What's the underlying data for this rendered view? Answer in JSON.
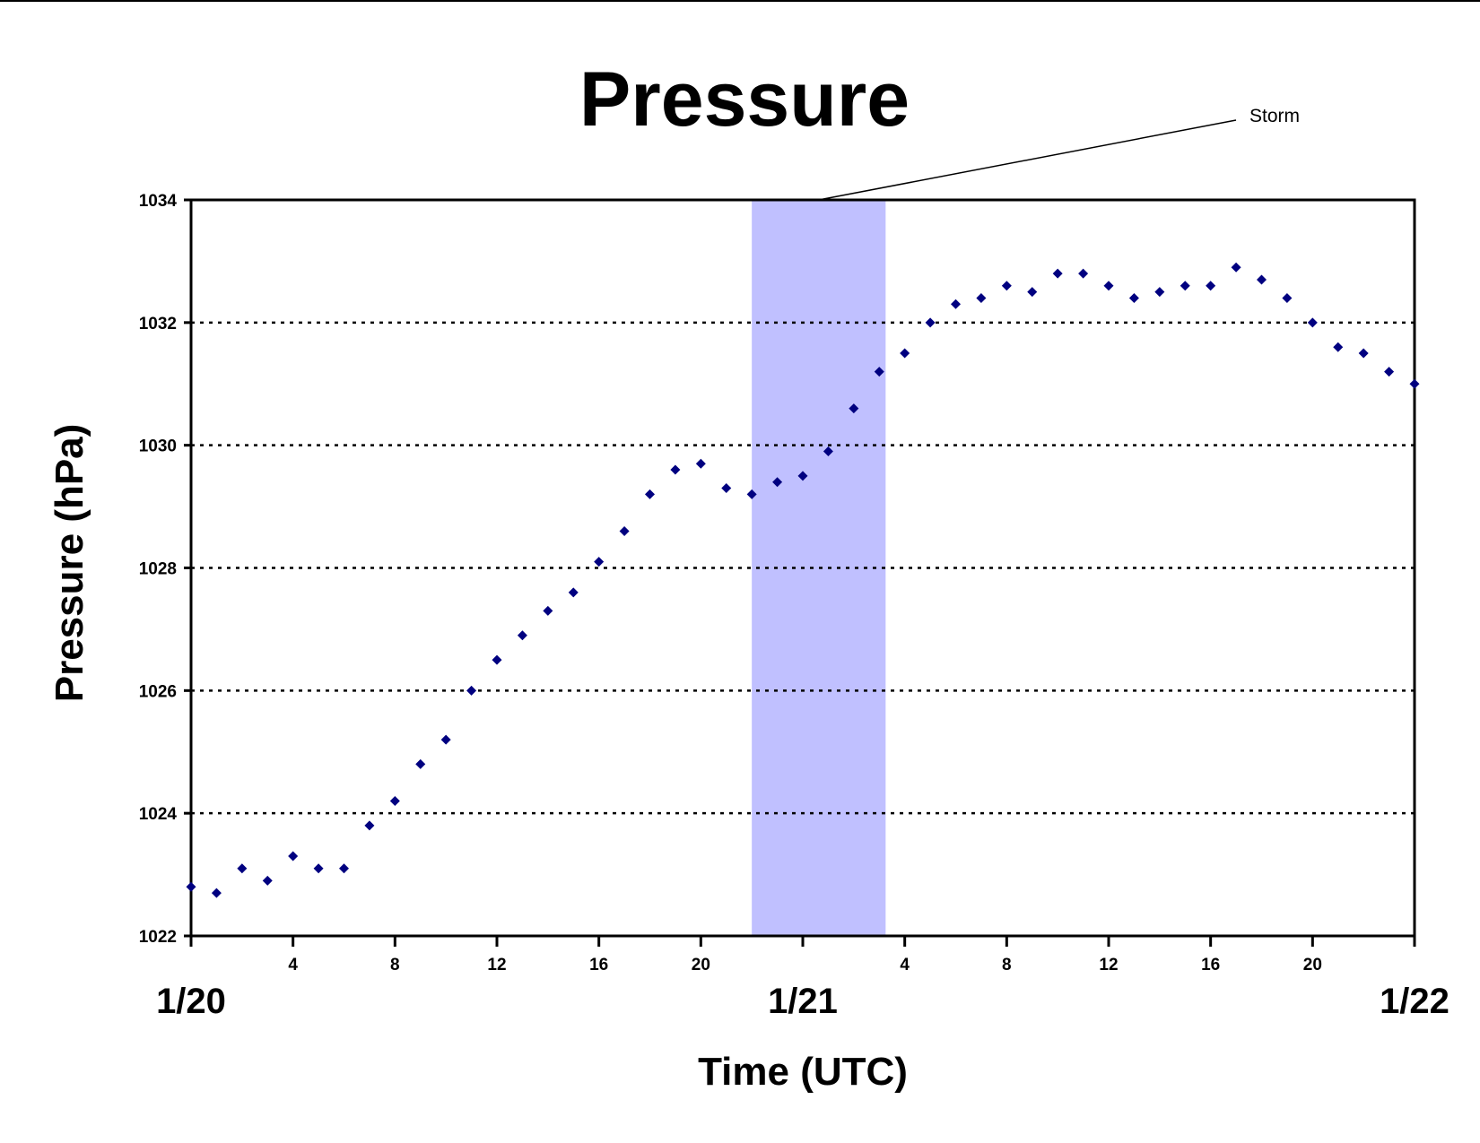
{
  "chart_data": {
    "type": "scatter",
    "title": "Pressure",
    "xlabel": "Time (UTC)",
    "ylabel": "Pressure (hPa)",
    "ylim": [
      1022,
      1034
    ],
    "yticks": [
      1022,
      1024,
      1026,
      1028,
      1030,
      1032,
      1034
    ],
    "xlim": [
      "1/20 0:00",
      "1/22 0:00"
    ],
    "x_unit": "hour (UTC) from 1/20 0:00",
    "xticks": [
      {
        "hour": 4,
        "label": "4"
      },
      {
        "hour": 8,
        "label": "8"
      },
      {
        "hour": 12,
        "label": "12"
      },
      {
        "hour": 16,
        "label": "16"
      },
      {
        "hour": 20,
        "label": "20"
      },
      {
        "hour": 28,
        "label": "4"
      },
      {
        "hour": 32,
        "label": "8"
      },
      {
        "hour": 36,
        "label": "12"
      },
      {
        "hour": 40,
        "label": "16"
      },
      {
        "hour": 44,
        "label": "20"
      }
    ],
    "date_labels": [
      {
        "hour": 0,
        "label": "1/20"
      },
      {
        "hour": 24,
        "label": "1/21"
      },
      {
        "hour": 48,
        "label": "1/22"
      }
    ],
    "grid": "horizontal dotted",
    "marker_color": "#000080",
    "shaded_region": {
      "from_hour": 22,
      "to_hour": 27.25,
      "color": "#c0c0ff",
      "label": "Storm"
    },
    "series": [
      {
        "points": [
          [
            0,
            1022.8
          ],
          [
            1,
            1022.7
          ],
          [
            2,
            1023.1
          ],
          [
            3,
            1022.9
          ],
          [
            4,
            1023.3
          ],
          [
            5,
            1023.1
          ],
          [
            6,
            1023.1
          ],
          [
            7,
            1023.8
          ],
          [
            8,
            1024.2
          ],
          [
            9,
            1024.8
          ],
          [
            10,
            1025.2
          ],
          [
            11,
            1026.0
          ],
          [
            12,
            1026.5
          ],
          [
            13,
            1026.9
          ],
          [
            14,
            1027.3
          ],
          [
            15,
            1027.6
          ],
          [
            16,
            1028.1
          ],
          [
            17,
            1028.6
          ],
          [
            18,
            1029.2
          ],
          [
            19,
            1029.6
          ],
          [
            20,
            1029.7
          ],
          [
            21,
            1029.3
          ],
          [
            22,
            1029.2
          ],
          [
            23,
            1029.4
          ],
          [
            24,
            1029.5
          ],
          [
            25,
            1029.9
          ],
          [
            26,
            1030.6
          ],
          [
            27,
            1031.2
          ],
          [
            28,
            1031.5
          ],
          [
            29,
            1032.0
          ],
          [
            30,
            1032.3
          ],
          [
            31,
            1032.4
          ],
          [
            32,
            1032.6
          ],
          [
            33,
            1032.5
          ],
          [
            34,
            1032.8
          ],
          [
            35,
            1032.8
          ],
          [
            36,
            1032.6
          ],
          [
            37,
            1032.4
          ],
          [
            38,
            1032.5
          ],
          [
            39,
            1032.6
          ],
          [
            40,
            1032.6
          ],
          [
            41,
            1032.9
          ],
          [
            42,
            1032.7
          ],
          [
            43,
            1032.4
          ],
          [
            44,
            1032.0
          ],
          [
            45,
            1031.6
          ],
          [
            46,
            1031.5
          ],
          [
            47,
            1031.2
          ],
          [
            48,
            1031.0
          ]
        ]
      }
    ]
  }
}
